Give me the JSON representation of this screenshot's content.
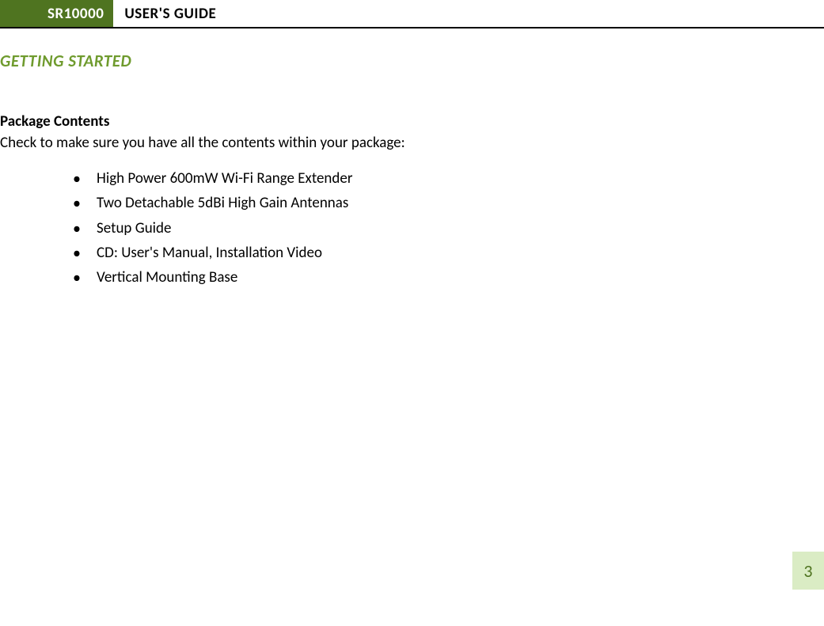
{
  "header": {
    "badge": "SR10000",
    "title": "USER'S GUIDE"
  },
  "section": {
    "title": "GETTING STARTED"
  },
  "subsection": {
    "heading": "Package Contents",
    "intro": "Check to make sure you have all the contents within your package:",
    "items": [
      "High Power 600mW Wi-Fi Range Extender",
      "Two Detachable 5dBi High Gain Antennas",
      "Setup Guide",
      "CD: User's Manual, Installation Video",
      "Vertical Mounting Base"
    ]
  },
  "page_number": "3",
  "colors": {
    "badge_bg": "#4f7420",
    "section_title": "#6f9b2e",
    "page_num_bg": "#daecc4",
    "page_num_text": "#4f7420",
    "border": "#000000"
  }
}
